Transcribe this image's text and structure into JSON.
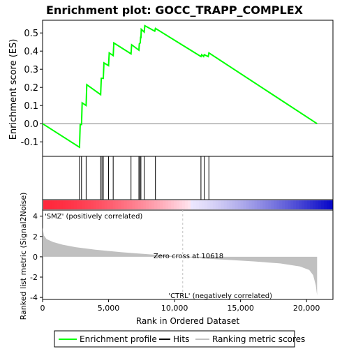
{
  "chart_data": {
    "type": "line",
    "title": "Enrichment plot: GOCC_TRAPP_COMPLEX",
    "es_panel": {
      "ylabel": "Enrichment score (ES)",
      "ylim": [
        -0.18,
        0.57
      ],
      "yticks": [
        -0.1,
        0.0,
        0.1,
        0.2,
        0.3,
        0.4,
        0.5
      ],
      "ytick_labels": [
        "-0.1",
        "0.0",
        "0.1",
        "0.2",
        "0.3",
        "0.4",
        "0.5"
      ],
      "series": [
        {
          "name": "Enrichment profile",
          "color": "#00ff00",
          "x": [
            0,
            2800,
            2850,
            2950,
            3000,
            3300,
            3350,
            4400,
            4450,
            4600,
            4650,
            5000,
            5050,
            5350,
            5400,
            6700,
            6750,
            7300,
            7330,
            7400,
            7430,
            7450,
            7480,
            7700,
            7750,
            8500,
            8550,
            12000,
            12050,
            12200,
            12250,
            12550,
            12600,
            20800
          ],
          "y": [
            0.0,
            -0.13,
            -0.005,
            -0.005,
            0.115,
            0.1,
            0.215,
            0.16,
            0.25,
            0.25,
            0.335,
            0.32,
            0.39,
            0.375,
            0.445,
            0.385,
            0.435,
            0.405,
            0.44,
            0.445,
            0.48,
            0.47,
            0.52,
            0.505,
            0.54,
            0.51,
            0.525,
            0.37,
            0.38,
            0.37,
            0.38,
            0.37,
            0.39,
            0.0
          ]
        }
      ]
    },
    "hits": [
      2800,
      2950,
      3300,
      4400,
      4500,
      4600,
      5000,
      5350,
      6700,
      7300,
      7380,
      7450,
      7700,
      8550,
      12000,
      12250,
      12600
    ],
    "metric_panel": {
      "ylabel": "Ranked list metric (Signal2Noise)",
      "xlabel": "Rank in Ordered Dataset",
      "ylim": [
        -4.2,
        4.6
      ],
      "yticks": [
        -4,
        -2,
        0,
        2,
        4
      ],
      "ytick_labels": [
        "-4",
        "-2",
        "0",
        "2",
        "4"
      ],
      "xlim": [
        0,
        22000
      ],
      "xticks": [
        0,
        5000,
        10000,
        15000,
        20000
      ],
      "xtick_labels": [
        "0",
        "5,000",
        "10,000",
        "15,000",
        "20,000"
      ],
      "metric_curve": {
        "x": [
          0,
          100,
          300,
          800,
          1500,
          2500,
          4000,
          6000,
          8000,
          10618,
          12000,
          14000,
          16000,
          18000,
          19500,
          20200,
          20500,
          20700,
          20800
        ],
        "y": [
          2.9,
          2.1,
          1.75,
          1.45,
          1.2,
          0.95,
          0.7,
          0.45,
          0.25,
          0.0,
          -0.15,
          -0.3,
          -0.45,
          -0.65,
          -0.95,
          -1.3,
          -1.8,
          -2.8,
          -3.8
        ]
      },
      "zero_cross_rank": 10618,
      "zero_cross_label": "Zero cross at 10618",
      "pos_label": "'SMZ' (positively correlated)",
      "neg_label": "'CTRL' (negatively correlated)"
    },
    "n_genes": 20800
  },
  "legend": {
    "items": [
      "Enrichment profile",
      "Hits",
      "Ranking metric scores"
    ]
  },
  "colors": {
    "profile": "#00ff00",
    "hits": "#000000",
    "metric": "#c0c0c0",
    "pos_label": "#ff0000",
    "neg_label": "#0000c0"
  }
}
